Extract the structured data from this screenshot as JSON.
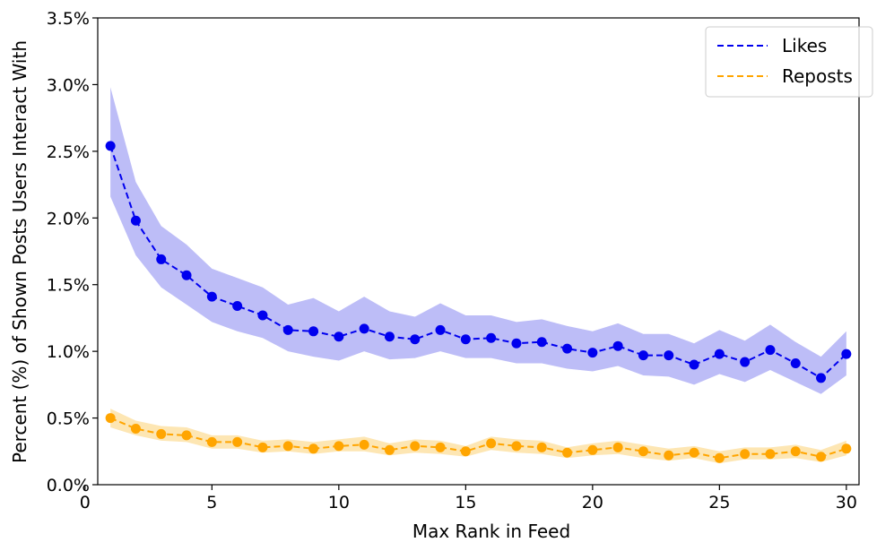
{
  "chart_data": {
    "type": "line",
    "title": "",
    "xlabel": "Max Rank in Feed",
    "ylabel": "Percent (%) of Shown Posts Users Interact With",
    "xlim": [
      0.5,
      30.5
    ],
    "ylim": [
      0,
      3.5
    ],
    "xticks": [
      0,
      5,
      10,
      15,
      20,
      25,
      30
    ],
    "xtick_labels": [
      "0",
      "5",
      "10",
      "15",
      "20",
      "25",
      "30"
    ],
    "yticks": [
      0,
      0.5,
      1.0,
      1.5,
      2.0,
      2.5,
      3.0,
      3.5
    ],
    "ytick_labels": [
      "0.0%",
      "0.5%",
      "1.0%",
      "1.5%",
      "2.0%",
      "2.5%",
      "3.0%",
      "3.5%"
    ],
    "legend_position": "top-right",
    "x": [
      1,
      2,
      3,
      4,
      5,
      6,
      7,
      8,
      9,
      10,
      11,
      12,
      13,
      14,
      15,
      16,
      17,
      18,
      19,
      20,
      21,
      22,
      23,
      24,
      25,
      26,
      27,
      28,
      29,
      30
    ],
    "series": [
      {
        "name": "Likes",
        "color": "#0000ee",
        "band_color": "#bdbdf7",
        "values": [
          2.54,
          1.98,
          1.69,
          1.57,
          1.41,
          1.34,
          1.27,
          1.16,
          1.15,
          1.11,
          1.17,
          1.11,
          1.09,
          1.16,
          1.09,
          1.1,
          1.06,
          1.07,
          1.02,
          0.99,
          1.04,
          0.97,
          0.97,
          0.9,
          0.98,
          0.92,
          1.01,
          0.91,
          0.8,
          0.98
        ],
        "lower": [
          2.16,
          1.72,
          1.48,
          1.35,
          1.22,
          1.15,
          1.1,
          1.0,
          0.96,
          0.93,
          1.0,
          0.94,
          0.95,
          1.0,
          0.95,
          0.95,
          0.91,
          0.91,
          0.87,
          0.85,
          0.89,
          0.82,
          0.81,
          0.75,
          0.83,
          0.77,
          0.86,
          0.77,
          0.68,
          0.82
        ],
        "upper": [
          2.98,
          2.27,
          1.94,
          1.8,
          1.62,
          1.55,
          1.48,
          1.35,
          1.4,
          1.3,
          1.41,
          1.3,
          1.26,
          1.36,
          1.27,
          1.27,
          1.22,
          1.24,
          1.19,
          1.15,
          1.21,
          1.13,
          1.13,
          1.06,
          1.16,
          1.08,
          1.2,
          1.07,
          0.96,
          1.15
        ]
      },
      {
        "name": "Reposts",
        "color": "#ffa500",
        "band_color": "#fde6b3",
        "values": [
          0.5,
          0.42,
          0.38,
          0.37,
          0.32,
          0.32,
          0.28,
          0.29,
          0.27,
          0.29,
          0.3,
          0.26,
          0.29,
          0.28,
          0.25,
          0.31,
          0.29,
          0.28,
          0.24,
          0.26,
          0.28,
          0.25,
          0.22,
          0.24,
          0.2,
          0.23,
          0.23,
          0.25,
          0.21,
          0.27
        ],
        "lower": [
          0.43,
          0.37,
          0.33,
          0.32,
          0.27,
          0.27,
          0.24,
          0.25,
          0.23,
          0.25,
          0.25,
          0.22,
          0.24,
          0.23,
          0.21,
          0.26,
          0.24,
          0.23,
          0.2,
          0.22,
          0.23,
          0.2,
          0.18,
          0.2,
          0.16,
          0.19,
          0.19,
          0.2,
          0.17,
          0.22
        ],
        "upper": [
          0.57,
          0.48,
          0.44,
          0.43,
          0.37,
          0.37,
          0.33,
          0.34,
          0.32,
          0.34,
          0.36,
          0.31,
          0.34,
          0.33,
          0.29,
          0.36,
          0.34,
          0.33,
          0.28,
          0.31,
          0.33,
          0.3,
          0.27,
          0.29,
          0.25,
          0.28,
          0.28,
          0.3,
          0.26,
          0.33
        ]
      }
    ]
  }
}
